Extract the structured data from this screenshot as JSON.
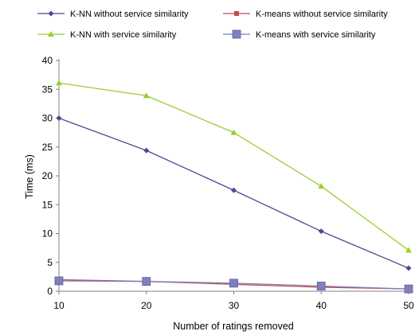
{
  "chart_data": {
    "type": "line",
    "xlabel": "Number of ratings removed",
    "ylabel": "Time (ms)",
    "x": [
      10,
      20,
      30,
      40,
      50
    ],
    "ylim": [
      0,
      40
    ],
    "yticks": [
      0,
      5,
      10,
      15,
      20,
      25,
      30,
      35,
      40
    ],
    "grid": false,
    "legend_position": "top",
    "series": [
      {
        "name": "K-NN without service similarity",
        "values": [
          30.0,
          24.4,
          17.5,
          10.4,
          4.0
        ],
        "color": "#4a4a96",
        "marker": "diamond"
      },
      {
        "name": "K-means without service similarity",
        "values": [
          2.0,
          1.7,
          1.2,
          0.7,
          0.4
        ],
        "color": "#c0504d",
        "marker": "square-small"
      },
      {
        "name": "K-NN with service similarity",
        "values": [
          36.1,
          33.9,
          27.5,
          18.2,
          7.1
        ],
        "color": "#9acd32",
        "marker": "triangle"
      },
      {
        "name": "K-means with service similarity",
        "values": [
          1.8,
          1.7,
          1.4,
          0.9,
          0.4
        ],
        "color": "#7f7fbf",
        "marker": "square"
      }
    ]
  }
}
